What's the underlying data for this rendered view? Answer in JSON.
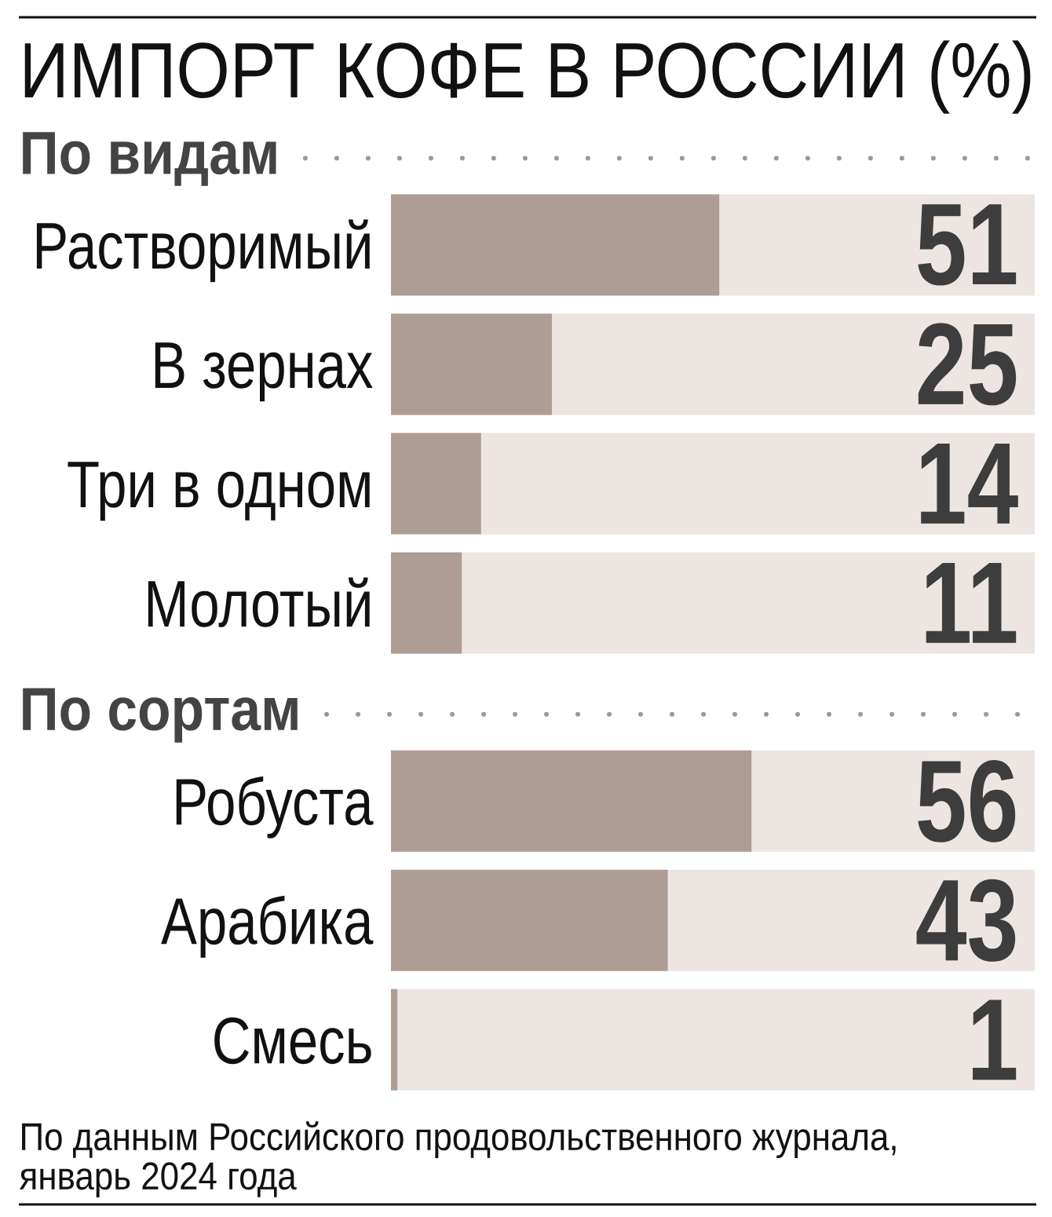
{
  "chart_data": [
    {
      "type": "bar",
      "orientation": "horizontal",
      "title": "ИМПОРТ КОФЕ В РОССИИ (%)",
      "subtitle": "По видам",
      "categories": [
        "Растворимый",
        "В зернах",
        "Три в одном",
        "Молотый"
      ],
      "values": [
        51,
        25,
        14,
        11
      ],
      "color": "#ae9d95",
      "xlim": [
        0,
        100
      ],
      "data_labels": true,
      "tick_labels": "y",
      "bands": [
        {
          "axis": "x",
          "from": 0,
          "to": 100,
          "color": "#ede5e1"
        }
      ]
    },
    {
      "type": "bar",
      "orientation": "horizontal",
      "subtitle": "По сортам",
      "categories": [
        "Робуста",
        "Арабика",
        "Смесь"
      ],
      "values": [
        56,
        43,
        1
      ],
      "color": "#ae9d95",
      "xlim": [
        0,
        100
      ],
      "data_labels": true,
      "tick_labels": "y",
      "bands": [
        {
          "axis": "x",
          "from": 0,
          "to": 100,
          "color": "#ede5e1"
        }
      ],
      "annotations": [
        "По данным Российского продовольственного журнала, январь 2024 года"
      ]
    }
  ]
}
